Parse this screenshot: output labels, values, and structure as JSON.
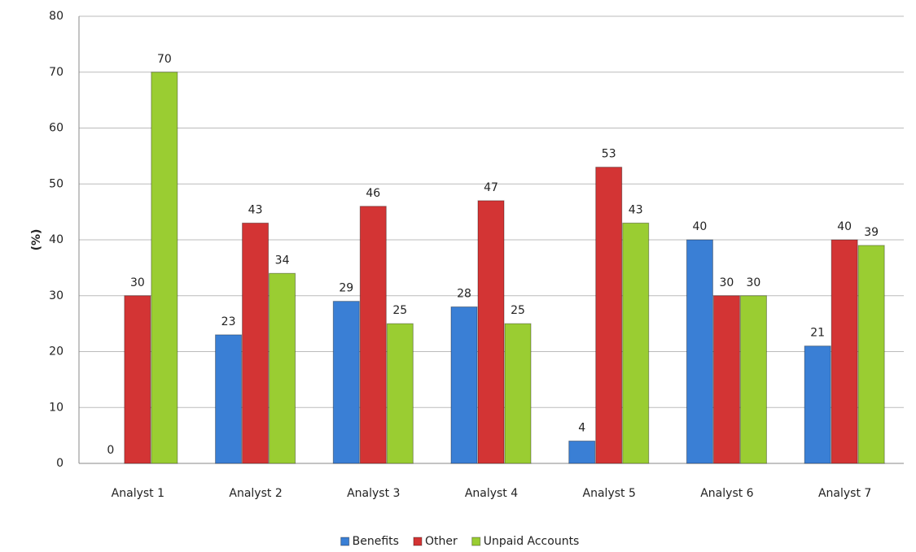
{
  "chart_data": {
    "type": "bar",
    "y_label": "(%)",
    "categories": [
      "Analyst 1",
      "Analyst 2",
      "Analyst 3",
      "Analyst 4",
      "Analyst 5",
      "Analyst 6",
      "Analyst 7"
    ],
    "series": [
      {
        "name": "Benefits",
        "color": "#3a7fd5",
        "values": [
          0,
          23,
          29,
          28,
          4,
          40,
          21
        ]
      },
      {
        "name": "Other",
        "color": "#d33434",
        "values": [
          30,
          43,
          46,
          47,
          53,
          30,
          40
        ]
      },
      {
        "name": "Unpaid Accounts",
        "color": "#9acd32",
        "values": [
          70,
          34,
          25,
          25,
          43,
          30,
          39
        ]
      }
    ],
    "ylim": [
      0,
      80
    ],
    "yticks": [
      0,
      10,
      20,
      30,
      40,
      50,
      60,
      70,
      80
    ],
    "grid": true,
    "legend": "bottom"
  }
}
